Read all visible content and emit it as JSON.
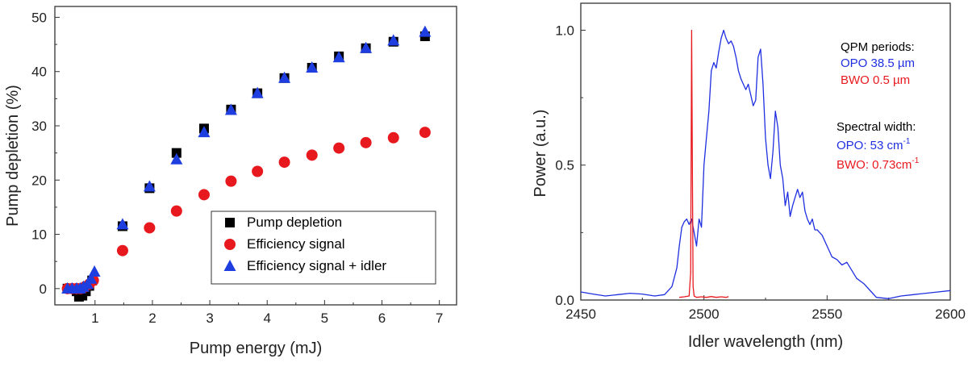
{
  "chart_data": [
    {
      "type": "scatter",
      "xlabel": "Pump energy (mJ)",
      "ylabel": "Pump depletion (%)",
      "xlim": [
        0.3,
        7.3
      ],
      "ylim": [
        -3,
        52
      ],
      "xticks": [
        1,
        2,
        3,
        4,
        5,
        6,
        7
      ],
      "yticks": [
        0,
        10,
        20,
        30,
        40,
        50
      ],
      "legend_position": "bottom-right",
      "series": [
        {
          "name": "Pump depletion",
          "marker": "square",
          "color": "#000000",
          "x": [
            0.52,
            0.6,
            0.68,
            0.72,
            0.78,
            0.84,
            0.9,
            0.95,
            1.48,
            1.95,
            2.42,
            2.9,
            3.37,
            3.83,
            4.3,
            4.78,
            5.25,
            5.72,
            6.2,
            6.75
          ],
          "y": [
            0,
            0,
            -0.5,
            -1.5,
            -1.3,
            -0.5,
            0.5,
            1.5,
            11.5,
            18.5,
            25,
            29.5,
            33,
            36,
            38.8,
            40.7,
            42.8,
            44.3,
            45.5,
            46.5
          ]
        },
        {
          "name": "Efficiency signal",
          "marker": "circle",
          "color": "#e8191e",
          "x": [
            0.52,
            0.6,
            0.68,
            0.75,
            0.82,
            0.9,
            0.97,
            1.48,
            1.95,
            2.42,
            2.9,
            3.37,
            3.83,
            4.3,
            4.78,
            5.25,
            5.72,
            6.2,
            6.75
          ],
          "y": [
            0,
            0,
            0,
            0,
            0.3,
            0.8,
            1.5,
            7,
            11.2,
            14.3,
            17.3,
            19.8,
            21.6,
            23.3,
            24.6,
            25.9,
            26.9,
            27.8,
            28.8
          ]
        },
        {
          "name": "Efficiency signal + idler",
          "marker": "triangle",
          "color": "#1f3ee0",
          "x": [
            0.52,
            0.6,
            0.68,
            0.74,
            0.8,
            0.87,
            0.93,
            0.99,
            1.48,
            1.95,
            2.42,
            2.9,
            3.37,
            3.83,
            4.3,
            4.78,
            5.25,
            5.72,
            6.2,
            6.75
          ],
          "y": [
            0,
            0,
            0,
            0,
            0.3,
            0.8,
            1.8,
            3.1,
            11.8,
            18.8,
            23.8,
            28.8,
            32.9,
            36,
            38.8,
            40.7,
            42.6,
            44.3,
            45.7,
            47.3
          ]
        }
      ]
    },
    {
      "type": "line",
      "xlabel": "Idler wavelength (nm)",
      "ylabel": "Power (a.u.)",
      "xlim": [
        2450,
        2600
      ],
      "ylim": [
        0,
        1.1
      ],
      "xticks": [
        2450,
        2500,
        2550,
        2600
      ],
      "yticks": [
        0.0,
        0.5,
        1.0
      ],
      "ytick_labels": [
        "0.0",
        "0.5",
        "1.0"
      ],
      "series": [
        {
          "name": "OPO",
          "color": "#1f2fe0",
          "x": [
            2450,
            2455,
            2460,
            2465,
            2470,
            2475,
            2480,
            2484,
            2487,
            2489,
            2490,
            2491,
            2492,
            2493,
            2494,
            2495,
            2496,
            2497,
            2498,
            2499,
            2500,
            2501,
            2502,
            2503,
            2504,
            2505,
            2506,
            2507,
            2508,
            2509,
            2510,
            2511,
            2512,
            2513,
            2514,
            2515,
            2516,
            2517,
            2518,
            2519,
            2520,
            2521,
            2522,
            2523,
            2524,
            2525,
            2526,
            2527,
            2528,
            2529,
            2530,
            2531,
            2532,
            2533,
            2534,
            2535,
            2536,
            2537,
            2538,
            2539,
            2540,
            2541,
            2542,
            2543,
            2544,
            2545,
            2546,
            2548,
            2550,
            2552,
            2554,
            2556,
            2558,
            2560,
            2562,
            2565,
            2568,
            2570,
            2575,
            2580,
            2585,
            2590,
            2595,
            2600
          ],
          "y": [
            0.03,
            0.022,
            0.015,
            0.02,
            0.025,
            0.022,
            0.015,
            0.02,
            0.05,
            0.12,
            0.2,
            0.27,
            0.29,
            0.3,
            0.28,
            0.3,
            0.25,
            0.2,
            0.3,
            0.27,
            0.5,
            0.6,
            0.7,
            0.85,
            0.88,
            0.86,
            0.92,
            0.97,
            1.0,
            0.97,
            0.95,
            0.96,
            0.94,
            0.9,
            0.85,
            0.82,
            0.8,
            0.78,
            0.8,
            0.76,
            0.72,
            0.74,
            0.9,
            0.93,
            0.8,
            0.6,
            0.5,
            0.45,
            0.55,
            0.7,
            0.64,
            0.5,
            0.45,
            0.35,
            0.4,
            0.31,
            0.35,
            0.38,
            0.41,
            0.38,
            0.4,
            0.33,
            0.3,
            0.28,
            0.3,
            0.26,
            0.26,
            0.24,
            0.2,
            0.16,
            0.15,
            0.13,
            0.14,
            0.11,
            0.08,
            0.06,
            0.03,
            0.01,
            0.005,
            0.015,
            0.02,
            0.025,
            0.03,
            0.035
          ]
        },
        {
          "name": "BWO",
          "color": "#e8191e",
          "x": [
            2490,
            2492,
            2494,
            2494.6,
            2495,
            2495.3,
            2495.6,
            2496,
            2497,
            2499,
            2501,
            2503,
            2505,
            2507,
            2509,
            2510
          ],
          "y": [
            0.01,
            0.012,
            0.015,
            0.1,
            1.0,
            0.5,
            0.05,
            0.015,
            0.01,
            0.012,
            0.01,
            0.013,
            0.01,
            0.012,
            0.01,
            0.013
          ]
        }
      ],
      "annotations": {
        "qpm_title": "QPM periods:",
        "qpm_opo": "OPO 38.5 µm",
        "qpm_bwo": "BWO 0.5 µm",
        "width_title": "Spectral width:",
        "width_opo": "OPO: 53 cm",
        "width_opo_sup": "-1",
        "width_bwo": "BWO: 0.73cm",
        "width_bwo_sup": "-1"
      }
    }
  ]
}
